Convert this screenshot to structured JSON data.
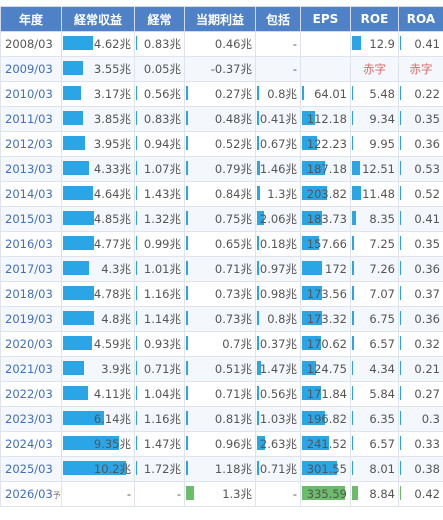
{
  "headers": [
    "年度",
    "経常収益",
    "経常",
    "当期利益",
    "包括",
    "EPS",
    "ROE",
    "ROA"
  ],
  "colors": {
    "header_bg": "#4f81c7",
    "bar": "#2aa6e6",
    "forecast_bar": "#6bbd6b",
    "deficit_text": "#e06a6a",
    "link": "#3f6fbf"
  },
  "rows": [
    {
      "year": "2008/03",
      "suffix": "",
      "link": false,
      "forecast": false,
      "cells": [
        {
          "text": "4.62兆",
          "bar": 0.45
        },
        {
          "text": "0.83兆",
          "bar": 0.03
        },
        {
          "text": "0.46兆",
          "bar": 0.0
        },
        {
          "text": "-",
          "bar": 0.0
        },
        {
          "text": "",
          "bar": 0.0
        },
        {
          "text": "12.9",
          "bar": 0.2
        },
        {
          "text": "0.41",
          "bar": 0.03
        }
      ]
    },
    {
      "year": "2009/03",
      "suffix": "",
      "link": true,
      "forecast": false,
      "cells": [
        {
          "text": "3.55兆",
          "bar": 0.3
        },
        {
          "text": "0.05兆",
          "bar": 0.0
        },
        {
          "text": "-0.37兆",
          "bar": 0.0
        },
        {
          "text": "-",
          "bar": 0.0
        },
        {
          "text": "",
          "bar": 0.0
        },
        {
          "text": "赤字",
          "bar": 0.0,
          "red": true
        },
        {
          "text": "赤字",
          "bar": 0.0,
          "red": true
        }
      ]
    },
    {
      "year": "2010/03",
      "suffix": "",
      "link": true,
      "forecast": false,
      "cells": [
        {
          "text": "3.17兆",
          "bar": 0.27
        },
        {
          "text": "0.56兆",
          "bar": 0.03
        },
        {
          "text": "0.27兆",
          "bar": 0.03
        },
        {
          "text": "0.8兆",
          "bar": 0.05
        },
        {
          "text": "64.01",
          "bar": 0.05
        },
        {
          "text": "5.48",
          "bar": 0.03
        },
        {
          "text": "0.22",
          "bar": 0.03
        }
      ]
    },
    {
      "year": "2011/03",
      "suffix": "",
      "link": true,
      "forecast": false,
      "cells": [
        {
          "text": "3.85兆",
          "bar": 0.3
        },
        {
          "text": "0.83兆",
          "bar": 0.03
        },
        {
          "text": "0.48兆",
          "bar": 0.03
        },
        {
          "text": "0.41兆",
          "bar": 0.05
        },
        {
          "text": "112.18",
          "bar": 0.28
        },
        {
          "text": "9.34",
          "bar": 0.03
        },
        {
          "text": "0.35",
          "bar": 0.03
        }
      ]
    },
    {
      "year": "2012/03",
      "suffix": "",
      "link": true,
      "forecast": false,
      "cells": [
        {
          "text": "3.95兆",
          "bar": 0.33
        },
        {
          "text": "0.94兆",
          "bar": 0.03
        },
        {
          "text": "0.52兆",
          "bar": 0.03
        },
        {
          "text": "0.67兆",
          "bar": 0.05
        },
        {
          "text": "122.23",
          "bar": 0.33
        },
        {
          "text": "9.95",
          "bar": 0.03
        },
        {
          "text": "0.36",
          "bar": 0.03
        }
      ]
    },
    {
      "year": "2013/03",
      "suffix": "",
      "link": true,
      "forecast": false,
      "cells": [
        {
          "text": "4.33兆",
          "bar": 0.4
        },
        {
          "text": "1.07兆",
          "bar": 0.03
        },
        {
          "text": "0.79兆",
          "bar": 0.03
        },
        {
          "text": "1.46兆",
          "bar": 0.08
        },
        {
          "text": "187.18",
          "bar": 0.5
        },
        {
          "text": "12.51",
          "bar": 0.18
        },
        {
          "text": "0.53",
          "bar": 0.03
        }
      ]
    },
    {
      "year": "2014/03",
      "suffix": "",
      "link": true,
      "forecast": false,
      "cells": [
        {
          "text": "4.64兆",
          "bar": 0.45
        },
        {
          "text": "1.43兆",
          "bar": 0.03
        },
        {
          "text": "0.84兆",
          "bar": 0.03
        },
        {
          "text": "1.3兆",
          "bar": 0.08
        },
        {
          "text": "203.82",
          "bar": 0.55
        },
        {
          "text": "11.48",
          "bar": 0.2
        },
        {
          "text": "0.52",
          "bar": 0.03
        }
      ]
    },
    {
      "year": "2015/03",
      "suffix": "",
      "link": true,
      "forecast": false,
      "cells": [
        {
          "text": "4.85兆",
          "bar": 0.47
        },
        {
          "text": "1.32兆",
          "bar": 0.03
        },
        {
          "text": "0.75兆",
          "bar": 0.03
        },
        {
          "text": "2.06兆",
          "bar": 0.18
        },
        {
          "text": "183.73",
          "bar": 0.45
        },
        {
          "text": "8.35",
          "bar": 0.1
        },
        {
          "text": "0.41",
          "bar": 0.03
        }
      ]
    },
    {
      "year": "2016/03",
      "suffix": "",
      "link": true,
      "forecast": false,
      "cells": [
        {
          "text": "4.77兆",
          "bar": 0.47
        },
        {
          "text": "0.99兆",
          "bar": 0.03
        },
        {
          "text": "0.65兆",
          "bar": 0.03
        },
        {
          "text": "0.18兆",
          "bar": 0.05
        },
        {
          "text": "157.66",
          "bar": 0.38
        },
        {
          "text": "7.25",
          "bar": 0.05
        },
        {
          "text": "0.35",
          "bar": 0.03
        }
      ]
    },
    {
      "year": "2017/03",
      "suffix": "",
      "link": true,
      "forecast": false,
      "cells": [
        {
          "text": "4.3兆",
          "bar": 0.4
        },
        {
          "text": "1.01兆",
          "bar": 0.03
        },
        {
          "text": "0.71兆",
          "bar": 0.03
        },
        {
          "text": "0.97兆",
          "bar": 0.05
        },
        {
          "text": "172",
          "bar": 0.45
        },
        {
          "text": "7.26",
          "bar": 0.05
        },
        {
          "text": "0.36",
          "bar": 0.03
        }
      ]
    },
    {
      "year": "2018/03",
      "suffix": "",
      "link": true,
      "forecast": false,
      "cells": [
        {
          "text": "4.78兆",
          "bar": 0.47
        },
        {
          "text": "1.16兆",
          "bar": 0.03
        },
        {
          "text": "0.73兆",
          "bar": 0.03
        },
        {
          "text": "0.98兆",
          "bar": 0.05
        },
        {
          "text": "173.56",
          "bar": 0.45
        },
        {
          "text": "7.07",
          "bar": 0.05
        },
        {
          "text": "0.37",
          "bar": 0.03
        }
      ]
    },
    {
      "year": "2019/03",
      "suffix": "",
      "link": true,
      "forecast": false,
      "cells": [
        {
          "text": "4.8兆",
          "bar": 0.47
        },
        {
          "text": "1.14兆",
          "bar": 0.03
        },
        {
          "text": "0.73兆",
          "bar": 0.03
        },
        {
          "text": "0.8兆",
          "bar": 0.05
        },
        {
          "text": "173.32",
          "bar": 0.45
        },
        {
          "text": "6.75",
          "bar": 0.05
        },
        {
          "text": "0.36",
          "bar": 0.03
        }
      ]
    },
    {
      "year": "2020/03",
      "suffix": "",
      "link": true,
      "forecast": false,
      "cells": [
        {
          "text": "4.59兆",
          "bar": 0.44
        },
        {
          "text": "0.93兆",
          "bar": 0.03
        },
        {
          "text": "0.7兆",
          "bar": 0.03
        },
        {
          "text": "0.37兆",
          "bar": 0.05
        },
        {
          "text": "170.62",
          "bar": 0.43
        },
        {
          "text": "6.57",
          "bar": 0.05
        },
        {
          "text": "0.32",
          "bar": 0.03
        }
      ]
    },
    {
      "year": "2021/03",
      "suffix": "",
      "link": true,
      "forecast": false,
      "cells": [
        {
          "text": "3.9兆",
          "bar": 0.32
        },
        {
          "text": "0.71兆",
          "bar": 0.03
        },
        {
          "text": "0.51兆",
          "bar": 0.03
        },
        {
          "text": "1.47兆",
          "bar": 0.1
        },
        {
          "text": "124.75",
          "bar": 0.3
        },
        {
          "text": "4.34",
          "bar": 0.03
        },
        {
          "text": "0.21",
          "bar": 0.03
        }
      ]
    },
    {
      "year": "2022/03",
      "suffix": "",
      "link": true,
      "forecast": false,
      "cells": [
        {
          "text": "4.11兆",
          "bar": 0.37
        },
        {
          "text": "1.04兆",
          "bar": 0.03
        },
        {
          "text": "0.71兆",
          "bar": 0.03
        },
        {
          "text": "0.56兆",
          "bar": 0.05
        },
        {
          "text": "171.84",
          "bar": 0.43
        },
        {
          "text": "5.84",
          "bar": 0.03
        },
        {
          "text": "0.27",
          "bar": 0.03
        }
      ]
    },
    {
      "year": "2023/03",
      "suffix": "",
      "link": true,
      "forecast": false,
      "cells": [
        {
          "text": "6.14兆",
          "bar": 0.62
        },
        {
          "text": "1.16兆",
          "bar": 0.03
        },
        {
          "text": "0.81兆",
          "bar": 0.03
        },
        {
          "text": "1.03兆",
          "bar": 0.05
        },
        {
          "text": "196.82",
          "bar": 0.5
        },
        {
          "text": "6.35",
          "bar": 0.03
        },
        {
          "text": "0.3",
          "bar": 0.03
        }
      ]
    },
    {
      "year": "2024/03",
      "suffix": "",
      "link": true,
      "forecast": false,
      "cells": [
        {
          "text": "9.35兆",
          "bar": 0.85
        },
        {
          "text": "1.47兆",
          "bar": 0.03
        },
        {
          "text": "0.96兆",
          "bar": 0.03
        },
        {
          "text": "2.63兆",
          "bar": 0.2
        },
        {
          "text": "241.52",
          "bar": 0.6
        },
        {
          "text": "6.57",
          "bar": 0.03
        },
        {
          "text": "0.33",
          "bar": 0.03
        }
      ]
    },
    {
      "year": "2025/03",
      "suffix": "",
      "link": true,
      "forecast": false,
      "cells": [
        {
          "text": "10.2兆",
          "bar": 0.95
        },
        {
          "text": "1.72兆",
          "bar": 0.03
        },
        {
          "text": "1.18兆",
          "bar": 0.03
        },
        {
          "text": "0.71兆",
          "bar": 0.05
        },
        {
          "text": "301.55",
          "bar": 0.78
        },
        {
          "text": "8.01",
          "bar": 0.03
        },
        {
          "text": "0.38",
          "bar": 0.03
        }
      ]
    },
    {
      "year": "2026/03",
      "suffix": "予",
      "link": true,
      "forecast": true,
      "cells": [
        {
          "text": "-",
          "bar": 0.0
        },
        {
          "text": "-",
          "bar": 0.0
        },
        {
          "text": "1.3兆",
          "bar": 0.12
        },
        {
          "text": "-",
          "bar": 0.0
        },
        {
          "text": "335.59",
          "bar": 0.95
        },
        {
          "text": "8.84",
          "bar": 0.15
        },
        {
          "text": "0.42",
          "bar": 0.03
        }
      ]
    }
  ]
}
